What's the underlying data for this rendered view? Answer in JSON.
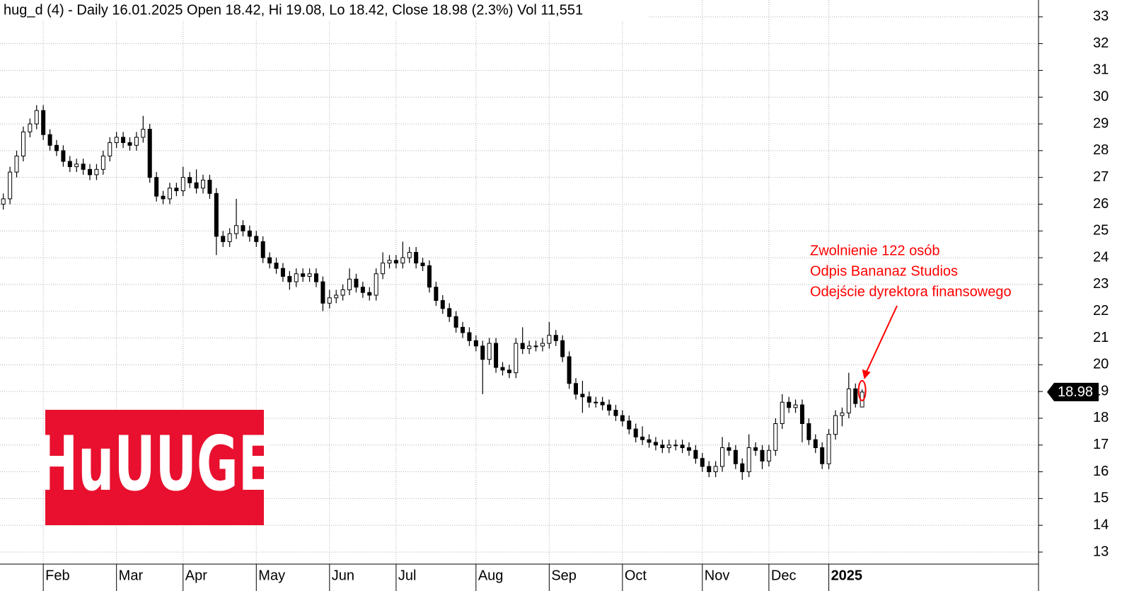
{
  "chart_data": {
    "type": "candlestick",
    "header": "hug_d (4) - Daily 16.01.2025 Open 18.42, Hi 19.08, Lo 18.42, Close 18.98 (2.3%) Vol 11,551",
    "logo": "HuUUGE",
    "annotations": [
      "Zwolnienie 122 osób",
      "Odpis Bananaz Studios",
      "Odejście dyrektora finansowego"
    ],
    "open": [
      26.0,
      26.2,
      27.2,
      27.8,
      28.7,
      29.0,
      29.5,
      28.6,
      28.2,
      28.0,
      27.6,
      27.4,
      27.5,
      27.3,
      27.1,
      27.3,
      27.8,
      28.3,
      28.5,
      28.3,
      28.2,
      28.5,
      28.8,
      27.0,
      26.3,
      26.2,
      26.6,
      26.5,
      27.0,
      26.8,
      26.6,
      26.9,
      26.4,
      24.8,
      24.6,
      24.9,
      25.2,
      25.0,
      24.8,
      24.6,
      24.0,
      23.8,
      23.6,
      23.3,
      23.1,
      23.4,
      23.3,
      23.4,
      23.1,
      22.3,
      22.5,
      22.6,
      22.8,
      23.2,
      22.9,
      22.7,
      22.6,
      23.4,
      23.8,
      23.9,
      23.8,
      24.0,
      24.2,
      23.8,
      23.7,
      22.9,
      22.4,
      22.1,
      21.8,
      21.4,
      21.2,
      20.9,
      20.7,
      20.2,
      20.8,
      19.9,
      19.8,
      19.7,
      20.8,
      20.6,
      20.7,
      20.7,
      20.8,
      21.1,
      20.9,
      20.3,
      19.3,
      18.9,
      18.8,
      18.6,
      18.6,
      18.5,
      18.3,
      18.1,
      17.9,
      17.6,
      17.3,
      17.2,
      17.1,
      17.0,
      16.9,
      17.0,
      17.0,
      16.9,
      16.8,
      16.5,
      16.2,
      16.0,
      16.2,
      16.9,
      16.8,
      16.3,
      16.0,
      16.9,
      16.8,
      16.4,
      16.8,
      17.8,
      18.6,
      18.4,
      18.5,
      17.8,
      17.2,
      16.9,
      16.3,
      17.4,
      18.1,
      18.2,
      19.1,
      18.42
    ],
    "high": [
      26.4,
      27.4,
      28.0,
      28.9,
      29.2,
      29.7,
      29.7,
      28.8,
      28.4,
      28.2,
      27.8,
      27.7,
      27.7,
      27.5,
      27.5,
      28.0,
      28.5,
      28.7,
      28.7,
      28.5,
      28.7,
      29.3,
      29.0,
      27.2,
      26.5,
      26.8,
      26.8,
      27.4,
      27.2,
      27.3,
      27.1,
      27.1,
      26.6,
      25.0,
      25.1,
      26.2,
      25.4,
      25.2,
      25.0,
      24.8,
      24.2,
      24.0,
      23.8,
      23.5,
      23.6,
      23.6,
      23.6,
      23.6,
      23.3,
      22.8,
      22.8,
      23.0,
      23.6,
      23.4,
      23.1,
      22.9,
      23.6,
      24.2,
      24.1,
      24.1,
      24.6,
      24.4,
      24.4,
      24.0,
      23.9,
      23.1,
      22.6,
      22.3,
      22.0,
      21.6,
      21.4,
      21.1,
      20.9,
      21.0,
      21.0,
      20.1,
      20.0,
      21.0,
      21.4,
      20.9,
      20.9,
      21.0,
      21.6,
      21.3,
      21.1,
      20.5,
      19.5,
      19.4,
      19.0,
      18.8,
      18.8,
      18.7,
      18.5,
      18.3,
      18.1,
      17.8,
      17.7,
      17.4,
      17.3,
      17.2,
      17.2,
      17.2,
      17.2,
      17.1,
      17.0,
      16.7,
      16.4,
      16.4,
      17.3,
      17.1,
      17.0,
      16.5,
      17.4,
      17.1,
      17.0,
      17.0,
      18.0,
      18.9,
      18.8,
      18.7,
      18.7,
      18.0,
      17.4,
      17.1,
      17.6,
      18.3,
      18.4,
      19.7,
      19.3,
      19.08
    ],
    "low": [
      25.8,
      26.0,
      27.0,
      27.6,
      28.5,
      28.8,
      28.4,
      28.0,
      27.8,
      27.4,
      27.2,
      27.2,
      27.1,
      26.9,
      26.9,
      27.1,
      27.6,
      28.1,
      28.1,
      28.0,
      28.0,
      28.3,
      26.8,
      26.1,
      26.0,
      26.0,
      26.3,
      26.3,
      26.6,
      26.4,
      26.4,
      26.2,
      24.1,
      24.4,
      24.4,
      24.7,
      24.8,
      24.6,
      24.4,
      23.8,
      23.6,
      23.4,
      23.1,
      22.8,
      22.9,
      23.1,
      23.1,
      22.9,
      22.0,
      22.1,
      22.3,
      22.4,
      22.6,
      22.7,
      22.5,
      22.4,
      22.4,
      23.2,
      23.6,
      23.6,
      23.6,
      23.8,
      23.6,
      23.5,
      22.7,
      22.2,
      21.9,
      21.6,
      21.2,
      21.0,
      20.7,
      20.5,
      18.9,
      20.0,
      19.7,
      19.6,
      19.5,
      19.5,
      20.4,
      20.4,
      20.5,
      20.5,
      20.6,
      20.7,
      20.1,
      19.1,
      18.7,
      18.2,
      18.4,
      18.4,
      18.3,
      18.1,
      17.9,
      17.7,
      17.4,
      17.1,
      17.0,
      16.9,
      16.8,
      16.7,
      16.7,
      16.8,
      16.7,
      16.6,
      16.3,
      16.0,
      15.8,
      15.8,
      16.0,
      16.6,
      16.1,
      15.7,
      15.8,
      16.6,
      16.1,
      16.2,
      16.6,
      17.6,
      18.2,
      18.2,
      17.1,
      17.0,
      16.7,
      16.1,
      16.1,
      17.2,
      17.7,
      18.0,
      18.4,
      18.42
    ],
    "close": [
      26.2,
      27.2,
      27.8,
      28.7,
      29.0,
      29.5,
      28.6,
      28.2,
      28.0,
      27.6,
      27.4,
      27.5,
      27.3,
      27.1,
      27.3,
      27.8,
      28.3,
      28.5,
      28.3,
      28.2,
      28.5,
      28.8,
      27.0,
      26.3,
      26.2,
      26.6,
      26.5,
      27.0,
      26.8,
      26.6,
      26.9,
      26.4,
      24.8,
      24.6,
      24.9,
      25.2,
      25.0,
      24.8,
      24.6,
      24.0,
      23.8,
      23.6,
      23.3,
      23.1,
      23.4,
      23.3,
      23.4,
      23.1,
      22.3,
      22.5,
      22.6,
      22.8,
      23.2,
      22.9,
      22.7,
      22.6,
      23.4,
      23.8,
      23.9,
      23.8,
      24.0,
      24.2,
      23.8,
      23.7,
      22.9,
      22.4,
      22.1,
      21.8,
      21.4,
      21.2,
      20.9,
      20.7,
      20.2,
      20.8,
      19.9,
      19.8,
      19.7,
      20.8,
      20.6,
      20.7,
      20.7,
      20.8,
      21.1,
      20.9,
      20.3,
      19.3,
      18.9,
      18.8,
      18.6,
      18.6,
      18.5,
      18.3,
      18.1,
      17.9,
      17.6,
      17.3,
      17.2,
      17.1,
      17.0,
      16.9,
      17.0,
      17.0,
      16.9,
      16.8,
      16.5,
      16.2,
      16.0,
      16.2,
      16.9,
      16.8,
      16.3,
      16.0,
      16.9,
      16.8,
      16.4,
      16.8,
      17.8,
      18.6,
      18.4,
      18.5,
      17.8,
      17.2,
      16.9,
      16.3,
      17.4,
      18.1,
      18.2,
      19.1,
      18.55,
      18.98
    ],
    "xlim": [
      -0.5,
      155.5
    ],
    "xticks": [
      {
        "value": 6,
        "label": "Feb"
      },
      {
        "value": 17,
        "label": "Mar"
      },
      {
        "value": 27,
        "label": "Apr"
      },
      {
        "value": 38,
        "label": "May"
      },
      {
        "value": 49,
        "label": "Jun"
      },
      {
        "value": 59,
        "label": "Jul"
      },
      {
        "value": 71,
        "label": "Aug"
      },
      {
        "value": 82,
        "label": "Sep"
      },
      {
        "value": 93,
        "label": "Oct"
      },
      {
        "value": 105,
        "label": "Nov"
      },
      {
        "value": 115,
        "label": "Dec"
      },
      {
        "value": 124,
        "label": "2025"
      }
    ],
    "ylim": [
      12.55,
      33.63
    ],
    "yticks": [
      13,
      14,
      15,
      16,
      17,
      18,
      19,
      20,
      21,
      22,
      23,
      24,
      25,
      26,
      27,
      28,
      29,
      30,
      31,
      32,
      33
    ],
    "grid": true,
    "color": "#000000",
    "annotation_color": "#ff0000",
    "logo_color": "#e8102e"
  }
}
